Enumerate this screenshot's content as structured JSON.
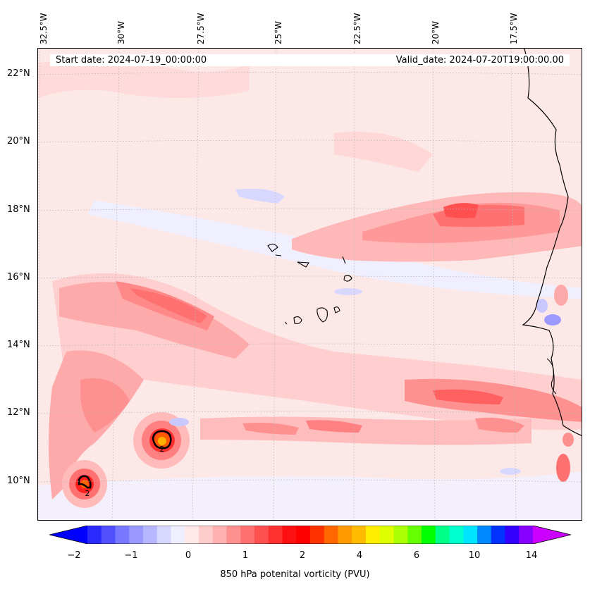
{
  "header": {
    "start_date": "Start date: 2024-07-19_00:00:00",
    "valid_date": "Valid_date: 2024-07-20T19:00:00.00"
  },
  "axes": {
    "longitude_labels": [
      "32.5°W",
      "30°W",
      "27.5°W",
      "25°W",
      "22.5°W",
      "20°W",
      "17.5°W"
    ],
    "latitude_labels": [
      "22°N",
      "20°N",
      "18°N",
      "16°N",
      "14°N",
      "12°N",
      "10°N"
    ]
  },
  "colorbar": {
    "title": "850 hPa potenital vorticity (PVU)",
    "tick_labels": [
      "−2",
      "−1",
      "0",
      "1",
      "2",
      "4",
      "6",
      "10",
      "14"
    ],
    "colors": [
      "#0000ff",
      "#2a2aff",
      "#5050ff",
      "#7777ff",
      "#9999ff",
      "#b7b7ff",
      "#d7d7ff",
      "#efefff",
      "#ffe8e8",
      "#ffcccc",
      "#ffb0b0",
      "#ff9090",
      "#ff7070",
      "#ff5050",
      "#ff3030",
      "#ff1010",
      "#ff0000",
      "#ff3300",
      "#ff6600",
      "#ff9900",
      "#ffbb00",
      "#ffee00",
      "#ddff00",
      "#aaff00",
      "#66ff00",
      "#00ff00",
      "#00ff88",
      "#00ffcc",
      "#00e5ff",
      "#0088ff",
      "#0033ff",
      "#3300ff",
      "#8800ff",
      "#cc00ff"
    ]
  },
  "contour_labels": [
    "2",
    "2"
  ]
}
